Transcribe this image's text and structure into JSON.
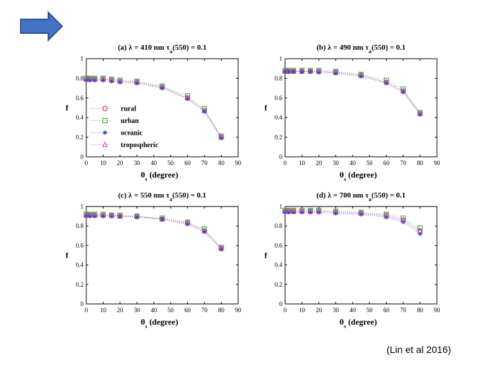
{
  "nav": {
    "arrow_icon": "right-arrow-icon",
    "arrow_color": "#4472C4",
    "arrow_stroke": "#2F528F"
  },
  "citation": "(Lin et al 2016)",
  "chart_data": [
    {
      "type": "scatter",
      "panel": "a",
      "title_prefix": "(a) λ = 410 nm τ",
      "title_sub": "a",
      "title_suffix": "(550) = 0.1",
      "ylabel": "f",
      "xlabel_theta": "θ",
      "xlabel_sub": "s",
      "xlabel_unit": " (degree)",
      "xlim": [
        0,
        90
      ],
      "ylim": [
        0,
        1
      ],
      "xticks": [
        "0",
        "10",
        "20",
        "30",
        "40",
        "50",
        "60",
        "70",
        "80",
        "90"
      ],
      "yticks": [
        "0",
        "0.2",
        "0.4",
        "0.6",
        "0.8",
        "1"
      ],
      "x": [
        0,
        2,
        5,
        10,
        15,
        20,
        30,
        45,
        60,
        70,
        80
      ],
      "legend": {
        "position": "left",
        "entries": [
          "rural",
          "urban",
          "oceanic",
          "tropospheric"
        ]
      },
      "series": [
        {
          "name": "rural",
          "marker": "circle",
          "color": "#d62728",
          "values": [
            0.79,
            0.79,
            0.79,
            0.79,
            0.78,
            0.77,
            0.76,
            0.71,
            0.6,
            0.47,
            0.2
          ]
        },
        {
          "name": "urban",
          "marker": "square",
          "color": "#2ca02c",
          "values": [
            0.8,
            0.8,
            0.8,
            0.8,
            0.79,
            0.78,
            0.77,
            0.72,
            0.62,
            0.49,
            0.21
          ]
        },
        {
          "name": "oceanic",
          "marker": "star",
          "color": "#1f3fbf",
          "values": [
            0.78,
            0.78,
            0.78,
            0.78,
            0.77,
            0.76,
            0.75,
            0.7,
            0.59,
            0.46,
            0.19
          ]
        },
        {
          "name": "tropospheric",
          "marker": "triangle",
          "color": "#c040c0",
          "values": [
            0.79,
            0.79,
            0.79,
            0.79,
            0.78,
            0.77,
            0.76,
            0.71,
            0.6,
            0.47,
            0.2
          ]
        }
      ]
    },
    {
      "type": "scatter",
      "panel": "b",
      "title_prefix": "(b) λ = 490 nm τ",
      "title_sub": "a",
      "title_suffix": "(550) = 0.1",
      "ylabel": "f",
      "xlabel_theta": "θ",
      "xlabel_sub": "s",
      "xlabel_unit": " (degree)",
      "xlim": [
        0,
        90
      ],
      "ylim": [
        0,
        1
      ],
      "xticks": [
        "0",
        "10",
        "20",
        "30",
        "40",
        "50",
        "60",
        "70",
        "80",
        "90"
      ],
      "yticks": [
        "0",
        "0.2",
        "0.4",
        "0.6",
        "0.8",
        "1"
      ],
      "x": [
        0,
        2,
        5,
        10,
        15,
        20,
        30,
        45,
        60,
        70,
        80
      ],
      "series": [
        {
          "name": "rural",
          "marker": "circle",
          "color": "#d62728",
          "values": [
            0.87,
            0.87,
            0.87,
            0.87,
            0.87,
            0.87,
            0.86,
            0.83,
            0.76,
            0.67,
            0.44
          ]
        },
        {
          "name": "urban",
          "marker": "square",
          "color": "#2ca02c",
          "values": [
            0.88,
            0.88,
            0.88,
            0.88,
            0.88,
            0.88,
            0.87,
            0.84,
            0.78,
            0.69,
            0.45
          ]
        },
        {
          "name": "oceanic",
          "marker": "star",
          "color": "#1f3fbf",
          "values": [
            0.87,
            0.87,
            0.87,
            0.87,
            0.87,
            0.86,
            0.85,
            0.82,
            0.75,
            0.66,
            0.43
          ]
        },
        {
          "name": "tropospheric",
          "marker": "triangle",
          "color": "#c040c0",
          "values": [
            0.87,
            0.87,
            0.87,
            0.87,
            0.87,
            0.87,
            0.86,
            0.83,
            0.76,
            0.67,
            0.44
          ]
        }
      ]
    },
    {
      "type": "scatter",
      "panel": "c",
      "title_prefix": "(c) λ = 550 nm τ",
      "title_sub": "a",
      "title_suffix": "(550) = 0.1",
      "ylabel": "f",
      "xlabel_theta": "θ",
      "xlabel_sub": "s",
      "xlabel_unit": " (degree)",
      "xlim": [
        0,
        90
      ],
      "ylim": [
        0,
        1
      ],
      "xticks": [
        "0",
        "10",
        "20",
        "30",
        "40",
        "50",
        "60",
        "70",
        "80",
        "90"
      ],
      "yticks": [
        "0",
        "0.2",
        "0.4",
        "0.6",
        "0.8",
        "1"
      ],
      "x": [
        0,
        2,
        5,
        10,
        15,
        20,
        30,
        45,
        60,
        70,
        80
      ],
      "series": [
        {
          "name": "rural",
          "marker": "circle",
          "color": "#d62728",
          "values": [
            0.91,
            0.91,
            0.91,
            0.91,
            0.91,
            0.9,
            0.9,
            0.87,
            0.83,
            0.75,
            0.57
          ]
        },
        {
          "name": "urban",
          "marker": "square",
          "color": "#2ca02c",
          "values": [
            0.92,
            0.92,
            0.92,
            0.92,
            0.91,
            0.91,
            0.9,
            0.88,
            0.84,
            0.77,
            0.58
          ]
        },
        {
          "name": "oceanic",
          "marker": "star",
          "color": "#1f3fbf",
          "values": [
            0.9,
            0.9,
            0.9,
            0.9,
            0.9,
            0.9,
            0.89,
            0.87,
            0.82,
            0.74,
            0.56
          ]
        },
        {
          "name": "tropospheric",
          "marker": "triangle",
          "color": "#c040c0",
          "values": [
            0.91,
            0.91,
            0.91,
            0.91,
            0.91,
            0.9,
            0.9,
            0.87,
            0.83,
            0.75,
            0.57
          ]
        }
      ]
    },
    {
      "type": "scatter",
      "panel": "d",
      "title_prefix": "(d) λ = 700 nm τ",
      "title_sub": "a",
      "title_suffix": "(550) = 0.1",
      "ylabel": "f",
      "xlabel_theta": "θ",
      "xlabel_sub": "s",
      "xlabel_unit": " (degree)",
      "xlim": [
        0,
        90
      ],
      "ylim": [
        0,
        1
      ],
      "xticks": [
        "0",
        "10",
        "20",
        "30",
        "40",
        "50",
        "60",
        "70",
        "80",
        "90"
      ],
      "yticks": [
        "0",
        "0.2",
        "0.4",
        "0.6",
        "0.8",
        "1"
      ],
      "x": [
        0,
        2,
        5,
        10,
        15,
        20,
        30,
        45,
        60,
        70,
        80
      ],
      "series": [
        {
          "name": "rural",
          "marker": "circle",
          "color": "#d62728",
          "values": [
            0.95,
            0.95,
            0.95,
            0.95,
            0.95,
            0.95,
            0.94,
            0.93,
            0.91,
            0.86,
            0.75
          ]
        },
        {
          "name": "urban",
          "marker": "square",
          "color": "#2ca02c",
          "values": [
            0.96,
            0.96,
            0.96,
            0.96,
            0.96,
            0.96,
            0.95,
            0.94,
            0.92,
            0.88,
            0.78
          ]
        },
        {
          "name": "oceanic",
          "marker": "star",
          "color": "#1f3fbf",
          "values": [
            0.94,
            0.94,
            0.94,
            0.94,
            0.94,
            0.94,
            0.93,
            0.92,
            0.89,
            0.84,
            0.72
          ]
        },
        {
          "name": "tropospheric",
          "marker": "triangle",
          "color": "#c040c0",
          "values": [
            0.95,
            0.95,
            0.95,
            0.95,
            0.95,
            0.95,
            0.94,
            0.93,
            0.9,
            0.86,
            0.75
          ]
        }
      ]
    }
  ]
}
